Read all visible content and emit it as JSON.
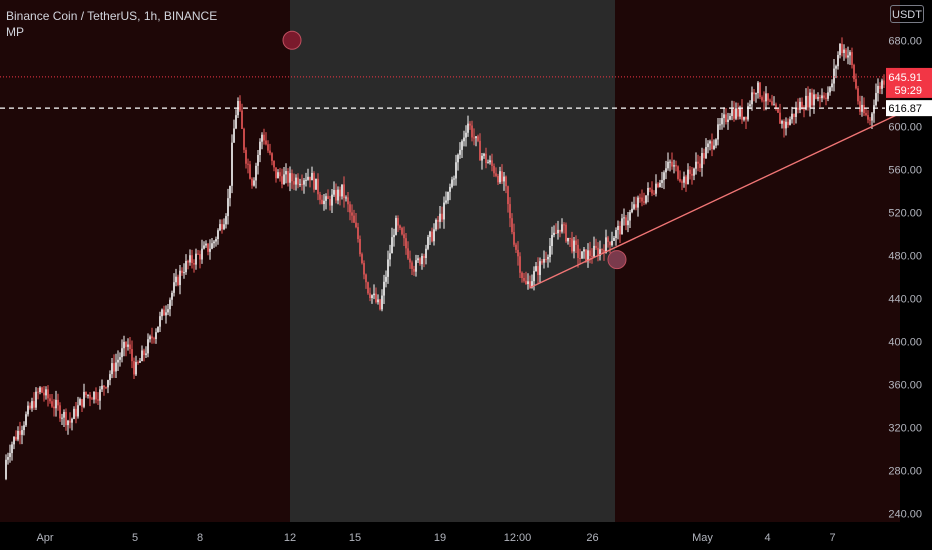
{
  "header": {
    "symbol": "Binance Coin / TetherUS, 1h, BINANCE",
    "indicator": "MP",
    "currency": "USDT"
  },
  "chart_data": {
    "type": "candlestick",
    "y_ticks": [
      240,
      280,
      320,
      360,
      400,
      440,
      480,
      520,
      560,
      600,
      640,
      680
    ],
    "ylim": [
      232,
      710
    ],
    "x_ticks": [
      "Apr",
      "5",
      "8",
      "12",
      "15",
      "19",
      "12:00",
      "26",
      "May",
      "4",
      "7"
    ],
    "price_markers": [
      {
        "value": "645.91",
        "sub": "59:29",
        "color": "#f23645"
      },
      {
        "value": "616.87",
        "color": "#ffffff"
      }
    ],
    "price_path": [
      [
        0,
        272
      ],
      [
        0.02,
        302
      ],
      [
        0.05,
        328
      ],
      [
        0.08,
        355
      ],
      [
        0.11,
        340
      ],
      [
        0.14,
        325
      ],
      [
        0.17,
        350
      ],
      [
        0.2,
        352
      ],
      [
        0.225,
        375
      ],
      [
        0.255,
        398
      ],
      [
        0.27,
        372
      ],
      [
        0.3,
        400
      ],
      [
        0.33,
        430
      ],
      [
        0.365,
        468
      ],
      [
        0.405,
        483
      ],
      [
        0.425,
        490
      ],
      [
        0.45,
        518
      ],
      [
        0.458,
        535
      ],
      [
        0.465,
        585
      ],
      [
        0.475,
        625
      ],
      [
        0.49,
        575
      ],
      [
        0.505,
        548
      ],
      [
        0.525,
        595
      ],
      [
        0.55,
        555
      ],
      [
        0.585,
        550
      ],
      [
        0.62,
        555
      ],
      [
        0.65,
        528
      ],
      [
        0.685,
        540
      ],
      [
        0.715,
        498
      ],
      [
        0.735,
        450
      ],
      [
        0.76,
        430
      ],
      [
        0.79,
        510
      ],
      [
        0.83,
        468
      ],
      [
        0.865,
        500
      ],
      [
        0.89,
        525
      ],
      [
        0.91,
        560
      ],
      [
        0.935,
        605
      ],
      [
        0.96,
        575
      ],
      [
        0.985,
        562
      ],
      [
        1.01,
        545
      ],
      [
        1.02,
        512
      ],
      [
        1.05,
        450
      ],
      [
        1.08,
        470
      ],
      [
        1.12,
        508
      ],
      [
        1.16,
        478
      ],
      [
        1.2,
        485
      ],
      [
        1.24,
        505
      ],
      [
        1.27,
        525
      ],
      [
        1.31,
        545
      ],
      [
        1.34,
        565
      ],
      [
        1.37,
        550
      ],
      [
        1.4,
        568
      ],
      [
        1.43,
        590
      ],
      [
        1.46,
        615
      ],
      [
        1.49,
        610
      ],
      [
        1.51,
        638
      ],
      [
        1.53,
        625
      ],
      [
        1.57,
        600
      ],
      [
        1.6,
        620
      ],
      [
        1.63,
        628
      ],
      [
        1.66,
        632
      ],
      [
        1.68,
        675
      ],
      [
        1.7,
        665
      ],
      [
        1.72,
        615
      ],
      [
        1.74,
        605
      ],
      [
        1.75,
        630
      ],
      [
        1.77,
        646
      ]
    ],
    "sessions": [
      {
        "from": 0,
        "to": 0.58,
        "color": "#1e0707"
      },
      {
        "from": 0.58,
        "to": 1.23,
        "color": "#2a2a2a"
      },
      {
        "from": 1.23,
        "to": 1.8,
        "color": "#1e0707"
      }
    ],
    "trendline": {
      "from": [
        1.06,
        450
      ],
      "to": [
        1.8,
        612
      ],
      "color": "#f07575"
    },
    "markers": [
      {
        "x": 0.58,
        "y": 680,
        "color": "#7a1a2c"
      },
      {
        "x": 1.23,
        "y": 476,
        "color": "#7a3a4c"
      }
    ]
  }
}
